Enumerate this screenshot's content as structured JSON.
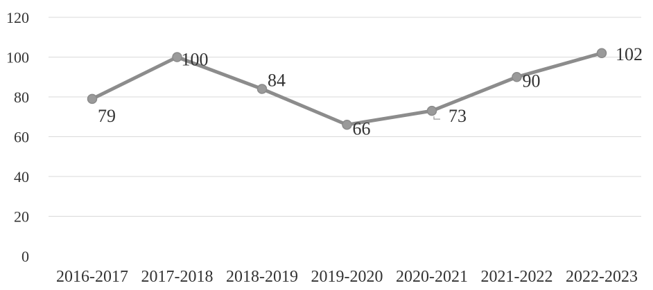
{
  "chart_data": {
    "type": "line",
    "title": "",
    "xlabel": "",
    "ylabel": "",
    "categories": [
      "2016-2017",
      "2017-2018",
      "2018-2019",
      "2019-2020",
      "2020-2021",
      "2021-2022",
      "2022-2023"
    ],
    "series": [
      {
        "values": [
          79,
          100,
          84,
          66,
          73,
          90,
          102
        ],
        "color": "#8c8c8c"
      }
    ],
    "data_labels": [
      "79",
      "100",
      "84",
      "66",
      "73",
      "90",
      "102"
    ],
    "ylim": [
      0,
      120
    ],
    "yticks": [
      "0",
      "20",
      "40",
      "60",
      "80",
      "100",
      "120"
    ],
    "grid": true,
    "legend": "none"
  }
}
